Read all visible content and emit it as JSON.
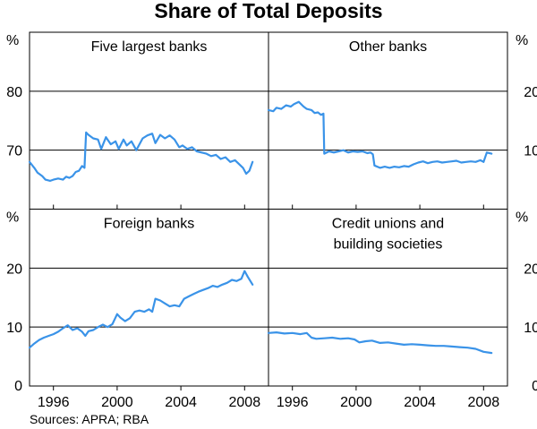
{
  "title": "Share of Total Deposits",
  "source": "Sources: APRA; RBA",
  "colors": {
    "series": "#3a93e8",
    "axes": "#000000",
    "grid": "#000000"
  },
  "chart_data": [
    {
      "type": "line",
      "title": "Five largest banks",
      "unit": "%",
      "ylim": [
        60,
        90
      ],
      "yticks": [
        60,
        70,
        80
      ],
      "ytick_labels": [
        "",
        "70",
        "80"
      ],
      "xlim": [
        1994.5,
        2009.5
      ],
      "xticks": [
        1996,
        2000,
        2004,
        2008
      ],
      "axis_side": "left",
      "series": [
        {
          "x": [
            1994.5,
            1994.8,
            1995.0,
            1995.3,
            1995.5,
            1995.8,
            1996.0,
            1996.3,
            1996.6,
            1996.8,
            1997.0,
            1997.2,
            1997.4,
            1997.6,
            1997.8,
            1997.95,
            1998.05,
            1998.2,
            1998.5,
            1998.8,
            1999.0,
            1999.3,
            1999.6,
            1999.9,
            2000.1,
            2000.4,
            2000.6,
            2000.9,
            2001.2,
            2001.4,
            2001.6,
            2001.9,
            2002.2,
            2002.4,
            2002.7,
            2003.0,
            2003.3,
            2003.6,
            2003.9,
            2004.1,
            2004.4,
            2004.7,
            2005.0,
            2005.3,
            2005.6,
            2005.9,
            2006.2,
            2006.5,
            2006.8,
            2007.1,
            2007.4,
            2007.7,
            2007.9,
            2008.1,
            2008.3,
            2008.5
          ],
          "values": [
            68.0,
            67.0,
            66.2,
            65.6,
            65.0,
            64.8,
            65.0,
            65.2,
            65.0,
            65.5,
            65.3,
            65.6,
            66.3,
            66.5,
            67.3,
            67.0,
            73.0,
            72.6,
            72.0,
            71.8,
            70.2,
            72.2,
            71.0,
            71.5,
            70.2,
            71.8,
            70.8,
            71.5,
            70.0,
            71.0,
            72.0,
            72.5,
            72.8,
            71.2,
            72.6,
            72.0,
            72.5,
            71.8,
            70.5,
            70.8,
            70.2,
            70.5,
            69.8,
            69.6,
            69.4,
            69.0,
            69.2,
            68.5,
            68.8,
            68.0,
            68.3,
            67.5,
            67.0,
            66.0,
            66.5,
            68.0
          ]
        }
      ]
    },
    {
      "type": "line",
      "title": "Other banks",
      "unit": "%",
      "ylim": [
        0,
        30
      ],
      "yticks": [
        0,
        10,
        20
      ],
      "ytick_labels": [
        "",
        "10",
        "20"
      ],
      "xlim": [
        1994.5,
        2009.5
      ],
      "xticks": [
        1996,
        2000,
        2004,
        2008
      ],
      "axis_side": "right",
      "series": [
        {
          "x": [
            1994.5,
            1994.8,
            1995.0,
            1995.3,
            1995.6,
            1995.9,
            1996.1,
            1996.4,
            1996.7,
            1996.9,
            1997.2,
            1997.4,
            1997.6,
            1997.8,
            1997.95,
            1998.0,
            1998.3,
            1998.6,
            1998.9,
            1999.2,
            1999.5,
            1999.8,
            2000.1,
            2000.4,
            2000.7,
            2000.9,
            2001.05,
            2001.15,
            2001.5,
            2001.8,
            2002.1,
            2002.4,
            2002.7,
            2003.0,
            2003.3,
            2003.6,
            2003.9,
            2004.2,
            2004.5,
            2004.8,
            2005.1,
            2005.4,
            2005.7,
            2006.0,
            2006.3,
            2006.6,
            2006.9,
            2007.2,
            2007.5,
            2007.8,
            2008.0,
            2008.2,
            2008.5
          ],
          "values": [
            16.8,
            16.6,
            17.2,
            17.0,
            17.6,
            17.4,
            17.8,
            18.2,
            17.4,
            17.0,
            16.8,
            16.3,
            16.4,
            16.0,
            16.2,
            9.4,
            9.8,
            9.6,
            9.8,
            10.0,
            9.6,
            9.8,
            9.7,
            9.8,
            9.5,
            9.6,
            9.3,
            7.4,
            7.0,
            7.2,
            7.0,
            7.2,
            7.1,
            7.3,
            7.2,
            7.6,
            7.9,
            8.1,
            7.8,
            8.0,
            8.1,
            7.9,
            8.0,
            8.1,
            8.2,
            7.9,
            8.0,
            8.1,
            8.0,
            8.3,
            8.0,
            9.6,
            9.4
          ]
        }
      ]
    },
    {
      "type": "line",
      "title": "Foreign banks",
      "unit": "%",
      "ylim": [
        0,
        30
      ],
      "yticks": [
        0,
        10,
        20
      ],
      "ytick_labels": [
        "0",
        "10",
        "20"
      ],
      "xlim": [
        1994.5,
        2009.5
      ],
      "xticks": [
        1996,
        2000,
        2004,
        2008
      ],
      "xtick_labels": [
        "1996",
        "2000",
        "2004",
        "2008"
      ],
      "axis_side": "left",
      "series": [
        {
          "x": [
            1994.5,
            1994.8,
            1995.1,
            1995.4,
            1995.7,
            1996.0,
            1996.3,
            1996.6,
            1996.9,
            1997.2,
            1997.5,
            1997.8,
            1998.0,
            1998.2,
            1998.5,
            1998.8,
            1999.1,
            1999.4,
            1999.7,
            2000.0,
            2000.2,
            2000.5,
            2000.8,
            2001.1,
            2001.4,
            2001.7,
            2002.0,
            2002.2,
            2002.4,
            2002.7,
            2003.0,
            2003.3,
            2003.6,
            2003.9,
            2004.2,
            2004.5,
            2004.8,
            2005.1,
            2005.4,
            2005.7,
            2006.0,
            2006.3,
            2006.6,
            2006.9,
            2007.2,
            2007.5,
            2007.8,
            2008.0,
            2008.2,
            2008.5
          ],
          "values": [
            6.5,
            7.2,
            7.8,
            8.2,
            8.5,
            8.8,
            9.2,
            9.8,
            10.3,
            9.5,
            9.8,
            9.2,
            8.5,
            9.3,
            9.5,
            10.0,
            10.4,
            10.0,
            10.5,
            12.2,
            11.6,
            11.0,
            11.5,
            12.6,
            12.8,
            12.6,
            13.0,
            12.6,
            14.8,
            14.5,
            14.0,
            13.5,
            13.7,
            13.5,
            14.8,
            15.2,
            15.6,
            16.0,
            16.3,
            16.6,
            17.0,
            16.8,
            17.2,
            17.5,
            18.0,
            17.8,
            18.2,
            19.5,
            18.5,
            17.2
          ]
        }
      ]
    },
    {
      "type": "line",
      "title": "Credit unions and building societies",
      "title_lines": [
        "Credit unions and",
        "building societies"
      ],
      "unit": "%",
      "ylim": [
        0,
        30
      ],
      "yticks": [
        0,
        10,
        20
      ],
      "ytick_labels": [
        "0",
        "10",
        "20"
      ],
      "xlim": [
        1994.5,
        2009.5
      ],
      "xticks": [
        1996,
        2000,
        2004,
        2008
      ],
      "xtick_labels": [
        "1996",
        "2000",
        "2004",
        "2008"
      ],
      "axis_side": "right",
      "series": [
        {
          "x": [
            1994.5,
            1995.0,
            1995.5,
            1996.0,
            1996.5,
            1996.9,
            1997.2,
            1997.5,
            1998.0,
            1998.5,
            1999.0,
            1999.5,
            1999.9,
            2000.2,
            2000.6,
            2001.0,
            2001.5,
            2002.0,
            2002.5,
            2003.0,
            2003.5,
            2004.0,
            2004.5,
            2005.0,
            2005.5,
            2006.0,
            2006.5,
            2007.0,
            2007.5,
            2008.0,
            2008.5
          ],
          "values": [
            9.0,
            9.1,
            8.9,
            9.0,
            8.8,
            9.0,
            8.2,
            8.0,
            8.1,
            8.2,
            8.0,
            8.1,
            7.9,
            7.4,
            7.6,
            7.7,
            7.3,
            7.4,
            7.2,
            7.0,
            7.1,
            7.0,
            6.9,
            6.8,
            6.8,
            6.7,
            6.6,
            6.5,
            6.3,
            5.8,
            5.6
          ]
        }
      ]
    }
  ]
}
